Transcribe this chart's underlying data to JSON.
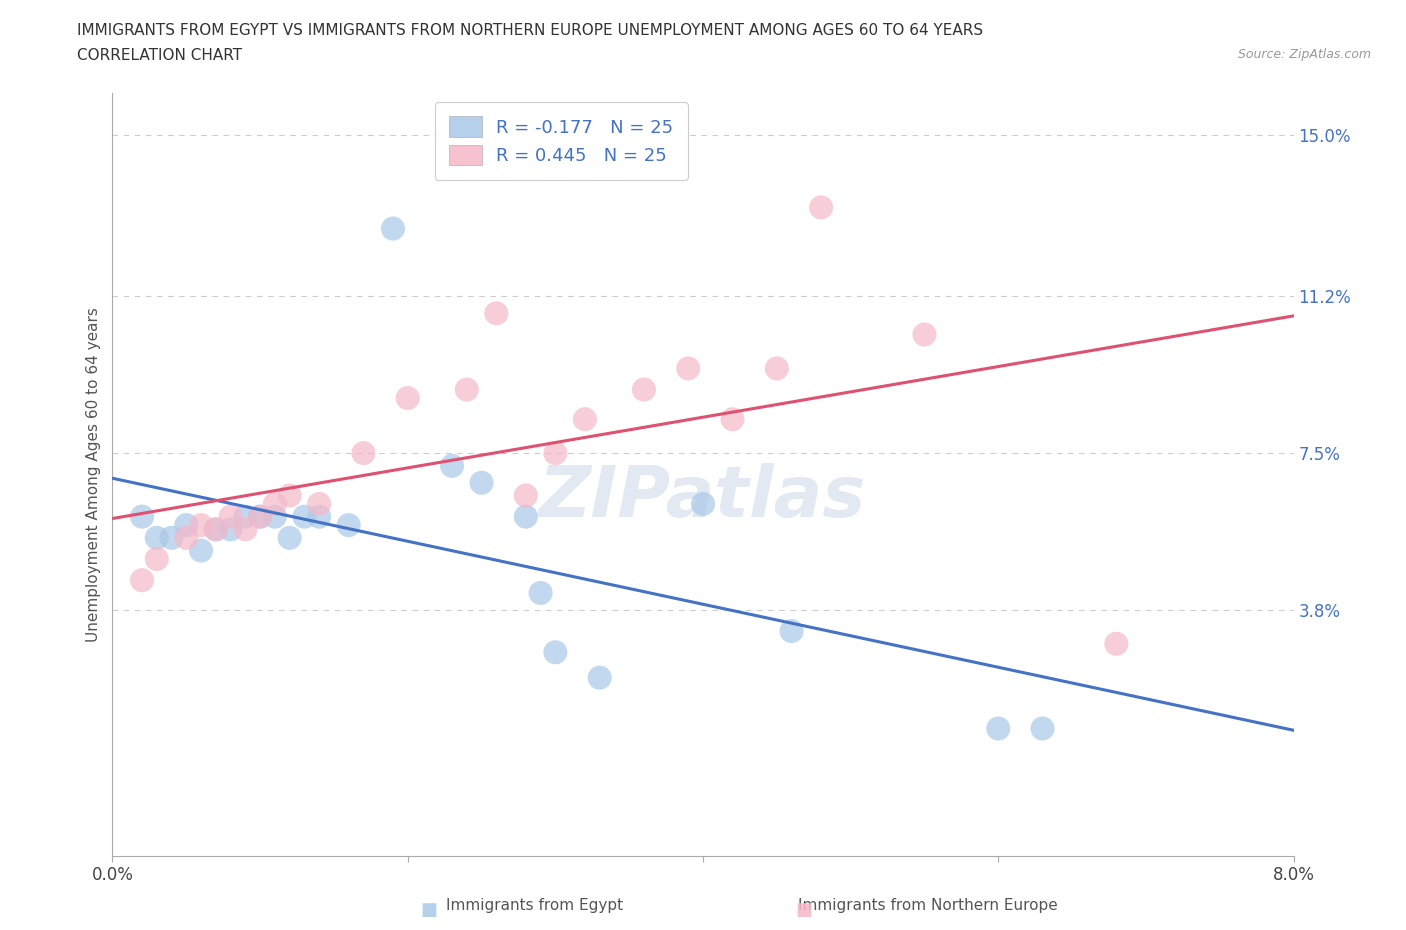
{
  "title_line1": "IMMIGRANTS FROM EGYPT VS IMMIGRANTS FROM NORTHERN EUROPE UNEMPLOYMENT AMONG AGES 60 TO 64 YEARS",
  "title_line2": "CORRELATION CHART",
  "source_text": "Source: ZipAtlas.com",
  "ylabel": "Unemployment Among Ages 60 to 64 years",
  "xlim": [
    0.0,
    0.08
  ],
  "ylim": [
    -0.02,
    0.16
  ],
  "egypt_color": "#a8c8e8",
  "northern_europe_color": "#f5b8c8",
  "egypt_line_color": "#4472c4",
  "northern_europe_line_color": "#e05070",
  "watermark": "ZIPatlas",
  "egypt_points": [
    [
      0.002,
      0.06
    ],
    [
      0.003,
      0.055
    ],
    [
      0.004,
      0.055
    ],
    [
      0.005,
      0.058
    ],
    [
      0.006,
      0.052
    ],
    [
      0.007,
      0.057
    ],
    [
      0.008,
      0.057
    ],
    [
      0.009,
      0.06
    ],
    [
      0.01,
      0.06
    ],
    [
      0.011,
      0.06
    ],
    [
      0.012,
      0.055
    ],
    [
      0.013,
      0.06
    ],
    [
      0.014,
      0.06
    ],
    [
      0.016,
      0.058
    ],
    [
      0.019,
      0.128
    ],
    [
      0.023,
      0.072
    ],
    [
      0.025,
      0.068
    ],
    [
      0.028,
      0.06
    ],
    [
      0.029,
      0.042
    ],
    [
      0.03,
      0.028
    ],
    [
      0.033,
      0.022
    ],
    [
      0.04,
      0.063
    ],
    [
      0.046,
      0.033
    ],
    [
      0.06,
      0.01
    ],
    [
      0.063,
      0.01
    ]
  ],
  "northern_europe_points": [
    [
      0.002,
      0.045
    ],
    [
      0.003,
      0.05
    ],
    [
      0.005,
      0.055
    ],
    [
      0.006,
      0.058
    ],
    [
      0.007,
      0.057
    ],
    [
      0.008,
      0.06
    ],
    [
      0.009,
      0.057
    ],
    [
      0.01,
      0.06
    ],
    [
      0.011,
      0.063
    ],
    [
      0.012,
      0.065
    ],
    [
      0.014,
      0.063
    ],
    [
      0.017,
      0.075
    ],
    [
      0.02,
      0.088
    ],
    [
      0.024,
      0.09
    ],
    [
      0.026,
      0.108
    ],
    [
      0.028,
      0.065
    ],
    [
      0.03,
      0.075
    ],
    [
      0.032,
      0.083
    ],
    [
      0.036,
      0.09
    ],
    [
      0.039,
      0.095
    ],
    [
      0.042,
      0.083
    ],
    [
      0.045,
      0.095
    ],
    [
      0.048,
      0.133
    ],
    [
      0.055,
      0.103
    ],
    [
      0.068,
      0.03
    ]
  ],
  "background_color": "#ffffff",
  "grid_color": "#cccccc",
  "ytick_vals": [
    0.038,
    0.075,
    0.112,
    0.15
  ],
  "ytick_labels": [
    "3.8%",
    "7.5%",
    "11.2%",
    "15.0%"
  ],
  "xtick_vals": [
    0.0,
    0.02,
    0.04,
    0.06,
    0.08
  ],
  "xtick_labels": [
    "0.0%",
    "",
    "",
    "",
    "8.0%"
  ]
}
